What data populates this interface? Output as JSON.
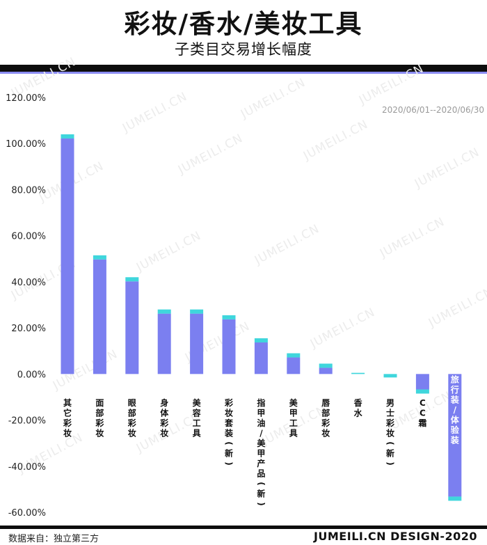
{
  "header": {
    "title": "彩妆/香水/美妆工具",
    "subtitle": "子类目交易增长幅度"
  },
  "date_range": "2020/06/01--2020/06/30",
  "footer": {
    "source": "数据来自：独立第三方",
    "brand": "JUMEILI.CN DESIGN-2020"
  },
  "watermark_text": "JUMEILI.CN",
  "colors": {
    "bar": "#7b7ff0",
    "cap": "#3fd6dc",
    "header_rule": "#0d0d0d",
    "accent_rule": "#8b8cf2"
  },
  "chart_data": {
    "type": "bar",
    "categories": [
      "其它彩妆",
      "面部彩妆",
      "眼部彩妆",
      "身体彩妆",
      "美容工具",
      "彩妆套装（新）",
      "指甲油/美甲产品（新）",
      "美甲工具",
      "唇部彩妆",
      "香水",
      "男士彩妆（新）",
      "CC霜",
      "旅行装/体验装"
    ],
    "values": [
      104.0,
      51.5,
      42.0,
      28.0,
      28.0,
      25.5,
      15.5,
      9.0,
      4.5,
      0.5,
      -1.5,
      -8.5,
      -55.0
    ],
    "ylim": [
      -60,
      120
    ],
    "yticks": [
      "120.00%",
      "100.00%",
      "80.00%",
      "60.00%",
      "40.00%",
      "20.00%",
      "0.00%",
      "-20.00%",
      "-40.00%",
      "-60.00%"
    ],
    "ytick_values": [
      120,
      100,
      80,
      60,
      40,
      20,
      0,
      -20,
      -40,
      -60
    ],
    "grid": false,
    "legend": "none"
  }
}
